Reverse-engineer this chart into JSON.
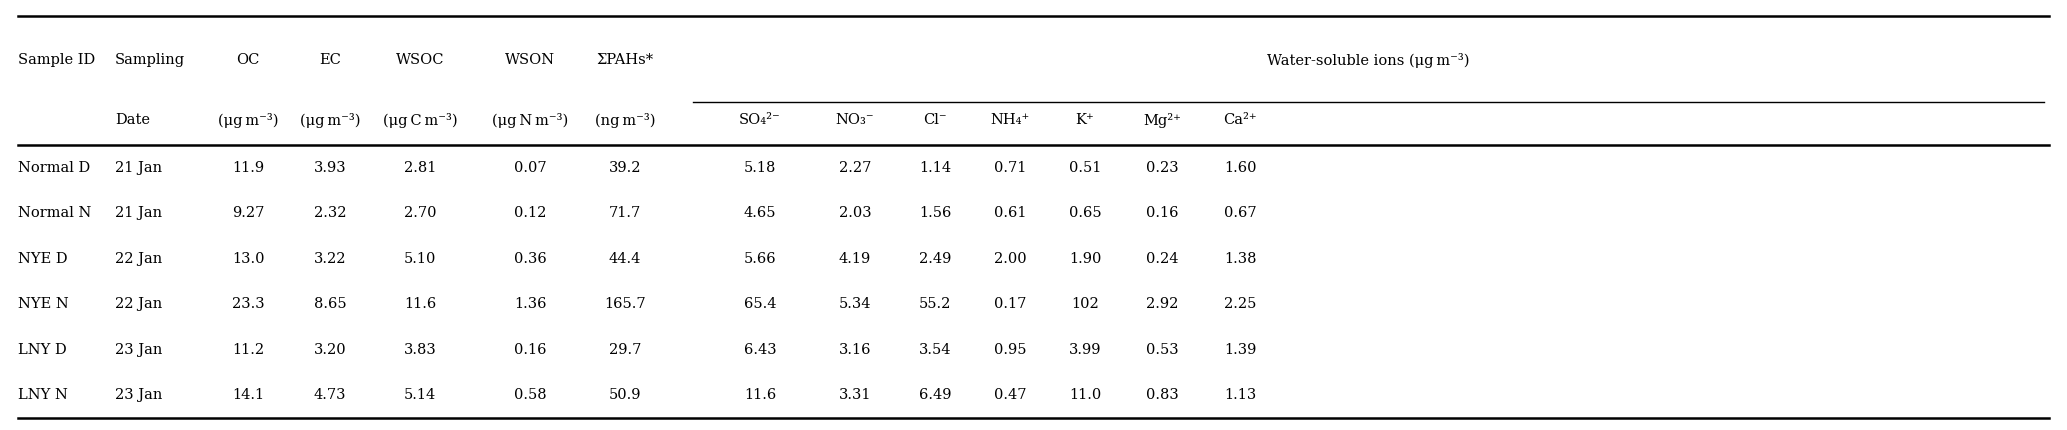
{
  "rows": [
    [
      "Normal D",
      "21 Jan",
      "11.9",
      "3.93",
      "2.81",
      "0.07",
      "39.2",
      "5.18",
      "2.27",
      "1.14",
      "0.71",
      "0.51",
      "0.23",
      "1.60"
    ],
    [
      "Normal N",
      "21 Jan",
      "9.27",
      "2.32",
      "2.70",
      "0.12",
      "71.7",
      "4.65",
      "2.03",
      "1.56",
      "0.61",
      "0.65",
      "0.16",
      "0.67"
    ],
    [
      "NYE D",
      "22 Jan",
      "13.0",
      "3.22",
      "5.10",
      "0.36",
      "44.4",
      "5.66",
      "4.19",
      "2.49",
      "2.00",
      "1.90",
      "0.24",
      "1.38"
    ],
    [
      "NYE N",
      "22 Jan",
      "23.3",
      "8.65",
      "11.6",
      "1.36",
      "165.7",
      "65.4",
      "5.34",
      "55.2",
      "0.17",
      "102",
      "2.92",
      "2.25"
    ],
    [
      "LNY D",
      "23 Jan",
      "11.2",
      "3.20",
      "3.83",
      "0.16",
      "29.7",
      "6.43",
      "3.16",
      "3.54",
      "0.95",
      "3.99",
      "0.53",
      "1.39"
    ],
    [
      "LNY N",
      "23 Jan",
      "14.1",
      "4.73",
      "5.14",
      "0.58",
      "50.9",
      "11.6",
      "3.31",
      "6.49",
      "0.47",
      "11.0",
      "0.83",
      "1.13"
    ]
  ],
  "background_color": "#ffffff",
  "text_color": "#000000",
  "font_size": 10.5,
  "header_font_size": 10.5
}
